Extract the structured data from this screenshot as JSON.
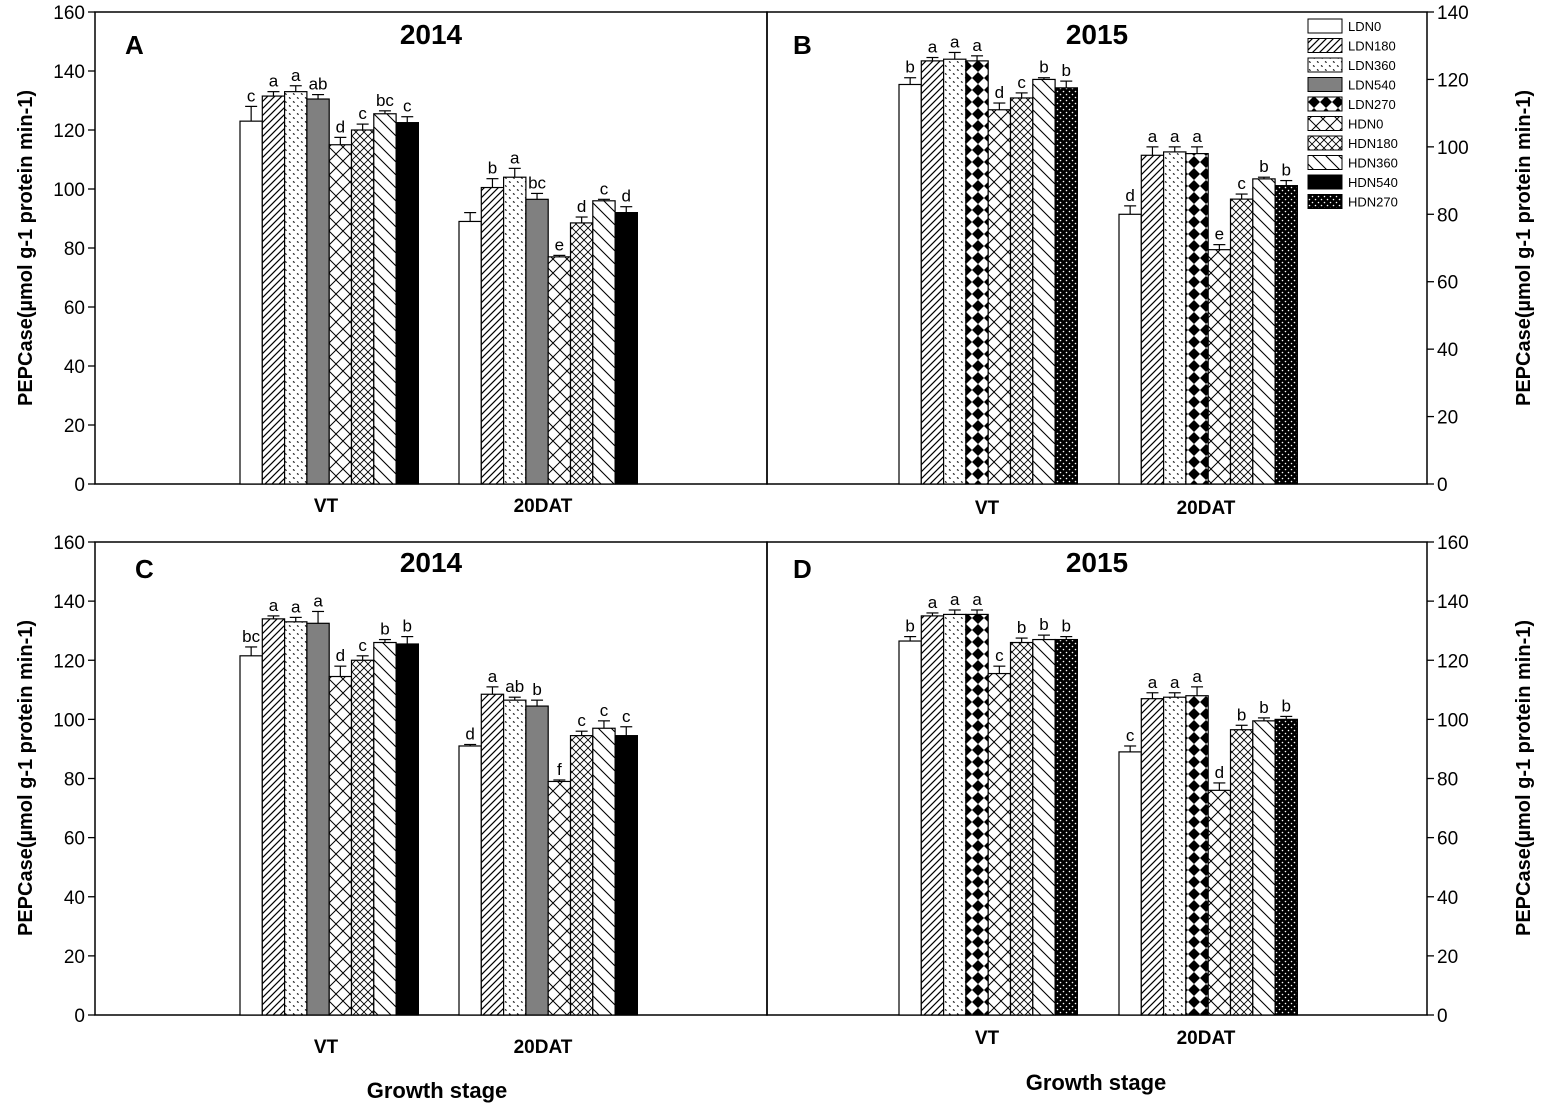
{
  "figure": {
    "y_label": "PEPCase(µmol g-1 protein min-1)",
    "x_label": "Growth stage",
    "categories": [
      "VT",
      "20DAT"
    ]
  },
  "legend": {
    "entries": [
      "LDN0",
      "LDN180",
      "LDN360",
      "LDN540",
      "LDN270",
      "HDN0",
      "HDN180",
      "HDN360",
      "HDN540",
      "HDN270"
    ],
    "pattern_icons": [
      "blank-white-icon",
      "diagonal-hatch-icon",
      "dotted-dash-icon",
      "solid-gray-icon",
      "diamond-pattern-icon",
      "cross-hatch-icon",
      "dense-cross-hatch-icon",
      "back-slash-hatch-icon",
      "solid-black-icon",
      "white-dots-black-icon"
    ]
  },
  "colors": {
    "axis": "#000000",
    "gray_fill": "#808080",
    "black_fill": "#000000",
    "background": "#ffffff"
  },
  "chart_data": [
    {
      "panel": "A",
      "title": "2014",
      "type": "bar",
      "ylim": [
        0,
        160
      ],
      "yticks": [
        0,
        20,
        40,
        60,
        80,
        100,
        120,
        140,
        160
      ],
      "y_side": "left",
      "categories": [
        "VT",
        "20DAT"
      ],
      "series": [
        {
          "name": "LDN0",
          "values": [
            123,
            89
          ],
          "errors": [
            5,
            3
          ],
          "letters": [
            "c",
            ""
          ]
        },
        {
          "name": "LDN180",
          "values": [
            131.5,
            100.5
          ],
          "errors": [
            1.5,
            3
          ],
          "letters": [
            "a",
            "b"
          ]
        },
        {
          "name": "LDN360",
          "values": [
            133,
            104
          ],
          "errors": [
            2,
            3
          ],
          "letters": [
            "a",
            "a"
          ]
        },
        {
          "name": "LDN540",
          "values": [
            130.5,
            96.5
          ],
          "errors": [
            1.5,
            2
          ],
          "letters": [
            "ab",
            "bc"
          ]
        },
        {
          "name": "HDN0",
          "values": [
            115,
            77
          ],
          "errors": [
            2.5,
            0.5
          ],
          "letters": [
            "d",
            "e"
          ]
        },
        {
          "name": "HDN180",
          "values": [
            120,
            88.5
          ],
          "errors": [
            2,
            2
          ],
          "letters": [
            "c",
            "d"
          ]
        },
        {
          "name": "HDN360",
          "values": [
            125.5,
            96
          ],
          "errors": [
            1,
            0.5
          ],
          "letters": [
            "bc",
            "c"
          ]
        },
        {
          "name": "HDN540",
          "values": [
            122.5,
            92
          ],
          "errors": [
            2,
            2
          ],
          "letters": [
            "c",
            "d"
          ]
        }
      ]
    },
    {
      "panel": "B",
      "title": "2015",
      "type": "bar",
      "ylim": [
        0,
        140
      ],
      "yticks": [
        0,
        20,
        40,
        60,
        80,
        100,
        120,
        140
      ],
      "y_side": "right",
      "categories": [
        "VT",
        "20DAT"
      ],
      "series": [
        {
          "name": "LDN0",
          "values": [
            118.5,
            80
          ],
          "errors": [
            2,
            2.5
          ],
          "letters": [
            "b",
            "d"
          ]
        },
        {
          "name": "LDN180",
          "values": [
            125.5,
            97.5
          ],
          "errors": [
            1,
            2.5
          ],
          "letters": [
            "a",
            "a"
          ]
        },
        {
          "name": "LDN360",
          "values": [
            126,
            98.5
          ],
          "errors": [
            2,
            1.5
          ],
          "letters": [
            "a",
            "a"
          ]
        },
        {
          "name": "LDN270",
          "values": [
            125.5,
            98
          ],
          "errors": [
            1.5,
            2
          ],
          "letters": [
            "a",
            "a"
          ]
        },
        {
          "name": "HDN0",
          "values": [
            111,
            69.5
          ],
          "errors": [
            2,
            1.5
          ],
          "letters": [
            "d",
            "e"
          ]
        },
        {
          "name": "HDN180",
          "values": [
            114.5,
            84.5
          ],
          "errors": [
            1.5,
            1.5
          ],
          "letters": [
            "c",
            "c"
          ]
        },
        {
          "name": "HDN360",
          "values": [
            120,
            90.5
          ],
          "errors": [
            0.5,
            0.5
          ],
          "letters": [
            "b",
            "b"
          ]
        },
        {
          "name": "HDN270",
          "values": [
            117.5,
            88.5
          ],
          "errors": [
            2,
            1.5
          ],
          "letters": [
            "b",
            "b"
          ]
        }
      ]
    },
    {
      "panel": "C",
      "title": "2014",
      "type": "bar",
      "ylim": [
        0,
        160
      ],
      "yticks": [
        0,
        20,
        40,
        60,
        80,
        100,
        120,
        140,
        160
      ],
      "y_side": "left",
      "categories": [
        "VT",
        "20DAT"
      ],
      "series": [
        {
          "name": "LDN0",
          "values": [
            121.5,
            91
          ],
          "errors": [
            3,
            0.5
          ],
          "letters": [
            "bc",
            "d"
          ]
        },
        {
          "name": "LDN180",
          "values": [
            134,
            108.5
          ],
          "errors": [
            1,
            2.5
          ],
          "letters": [
            "a",
            "a"
          ]
        },
        {
          "name": "LDN360",
          "values": [
            133,
            106.5
          ],
          "errors": [
            1.5,
            1
          ],
          "letters": [
            "a",
            "ab"
          ]
        },
        {
          "name": "LDN540",
          "values": [
            132.5,
            104.5
          ],
          "errors": [
            4,
            2
          ],
          "letters": [
            "a",
            "b"
          ]
        },
        {
          "name": "HDN0",
          "values": [
            114.5,
            79
          ],
          "errors": [
            3.5,
            0.5
          ],
          "letters": [
            "d",
            "f"
          ]
        },
        {
          "name": "HDN180",
          "values": [
            120,
            94.5
          ],
          "errors": [
            1.5,
            1.5
          ],
          "letters": [
            "c",
            "c"
          ]
        },
        {
          "name": "HDN360",
          "values": [
            126,
            97
          ],
          "errors": [
            1,
            2.5
          ],
          "letters": [
            "b",
            "c"
          ]
        },
        {
          "name": "HDN540",
          "values": [
            125.5,
            94.5
          ],
          "errors": [
            2.5,
            3
          ],
          "letters": [
            "b",
            "c"
          ]
        }
      ]
    },
    {
      "panel": "D",
      "title": "2015",
      "type": "bar",
      "ylim": [
        0,
        160
      ],
      "yticks": [
        0,
        20,
        40,
        60,
        80,
        100,
        120,
        140,
        160
      ],
      "y_side": "right",
      "categories": [
        "VT",
        "20DAT"
      ],
      "series": [
        {
          "name": "LDN0",
          "values": [
            126.5,
            89
          ],
          "errors": [
            1.5,
            2
          ],
          "letters": [
            "b",
            "c"
          ]
        },
        {
          "name": "LDN180",
          "values": [
            135,
            107
          ],
          "errors": [
            1,
            2
          ],
          "letters": [
            "a",
            "a"
          ]
        },
        {
          "name": "LDN360",
          "values": [
            135.5,
            107.5
          ],
          "errors": [
            1.5,
            1.5
          ],
          "letters": [
            "a",
            "a"
          ]
        },
        {
          "name": "LDN270",
          "values": [
            135.5,
            108
          ],
          "errors": [
            1.5,
            3
          ],
          "letters": [
            "a",
            "a"
          ]
        },
        {
          "name": "HDN0",
          "values": [
            115.5,
            76
          ],
          "errors": [
            2.5,
            2.5
          ],
          "letters": [
            "c",
            "d"
          ]
        },
        {
          "name": "HDN180",
          "values": [
            126,
            96.5
          ],
          "errors": [
            1.5,
            1.5
          ],
          "letters": [
            "b",
            "b"
          ]
        },
        {
          "name": "HDN360",
          "values": [
            127,
            99.5
          ],
          "errors": [
            1.5,
            1
          ],
          "letters": [
            "b",
            "b"
          ]
        },
        {
          "name": "HDN270",
          "values": [
            127,
            100
          ],
          "errors": [
            1,
            1
          ],
          "letters": [
            "b",
            "b"
          ]
        }
      ]
    }
  ]
}
